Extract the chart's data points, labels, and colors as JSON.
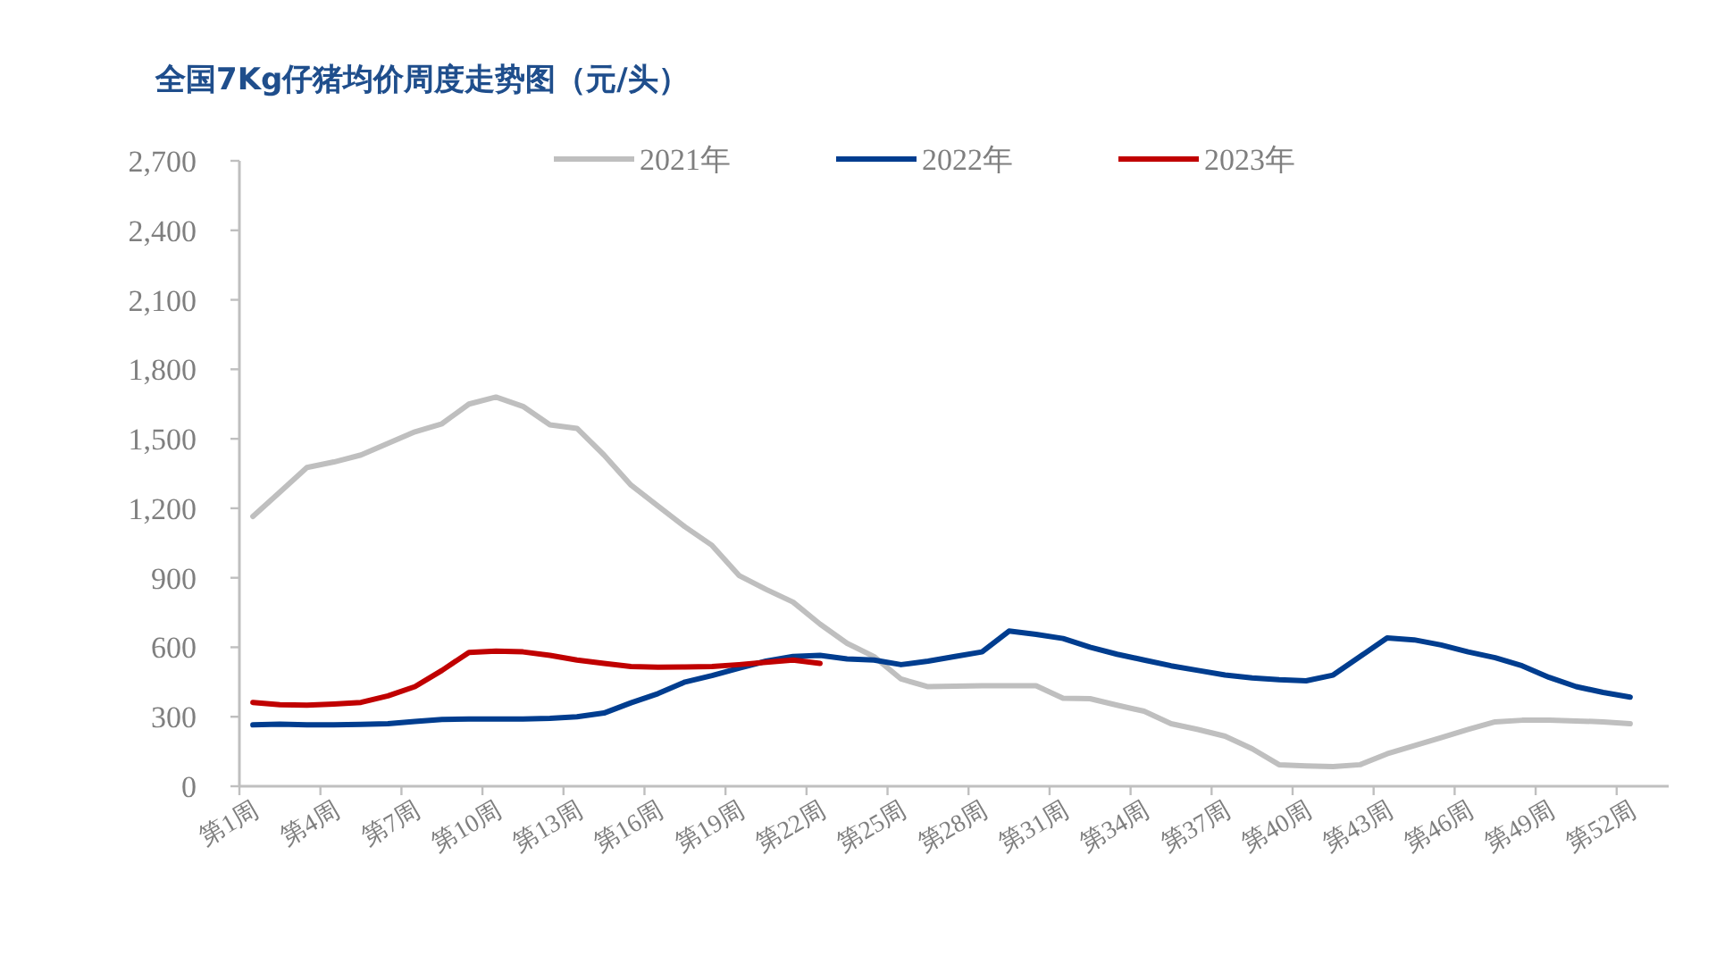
{
  "chart_data": {
    "type": "line",
    "title": "全国7Kg仔猪均价周度走势图（元/头）",
    "categories": [
      "第1周",
      null,
      null,
      "第4周",
      null,
      null,
      "第7周",
      null,
      null,
      "第10周",
      null,
      null,
      "第13周",
      null,
      null,
      "第16周",
      null,
      null,
      "第19周",
      null,
      null,
      "第22周",
      null,
      null,
      "第25周",
      null,
      null,
      "第28周",
      null,
      null,
      "第31周",
      null,
      null,
      "第34周",
      null,
      null,
      "第37周",
      null,
      null,
      "第40周",
      null,
      null,
      "第43周",
      null,
      null,
      "第46周",
      null,
      null,
      "第49周",
      null,
      null,
      "第52周"
    ],
    "series": [
      {
        "name": "2021年",
        "color": "#bfbfbf",
        "values": [
          1165,
          1270,
          1376,
          1400,
          1430,
          1480,
          1530,
          1565,
          1650,
          1680,
          1640,
          1560,
          1545,
          1430,
          1300,
          1210,
          1120,
          1040,
          910,
          850,
          795,
          700,
          617,
          560,
          463,
          430,
          432,
          434,
          434,
          434,
          380,
          378,
          350,
          324,
          270,
          245,
          216,
          162,
          93,
          88,
          85,
          93,
          140,
          175,
          210,
          245,
          278,
          285,
          285,
          282,
          278,
          270
        ]
      },
      {
        "name": "2022年",
        "color": "#003d8f",
        "values": [
          265,
          268,
          265,
          265,
          267,
          270,
          280,
          288,
          290,
          290,
          290,
          293,
          300,
          316,
          360,
          400,
          450,
          478,
          510,
          540,
          560,
          565,
          550,
          545,
          525,
          540,
          560,
          580,
          670,
          656,
          638,
          600,
          570,
          545,
          520,
          500,
          480,
          468,
          460,
          455,
          480,
          560,
          640,
          632,
          610,
          580,
          555,
          520,
          470,
          430,
          405,
          385
        ]
      },
      {
        "name": "2023年",
        "color": "#c00000",
        "values": [
          362,
          352,
          350,
          355,
          362,
          390,
          430,
          500,
          578,
          583,
          580,
          565,
          545,
          530,
          517,
          514,
          515,
          517,
          525,
          535,
          545,
          530,
          null,
          null,
          null,
          null,
          null,
          null,
          null,
          null,
          null,
          null,
          null,
          null,
          null,
          null,
          null,
          null,
          null,
          null,
          null,
          null,
          null,
          null,
          null,
          null,
          null,
          null,
          null,
          null,
          null,
          null
        ]
      }
    ],
    "ylim": [
      0,
      2700
    ],
    "yticks": [
      0,
      300,
      600,
      900,
      {
        "value": 1200,
        "label": "1,200"
      },
      {
        "value": 1500,
        "label": "1,500"
      },
      {
        "value": 1800,
        "label": "1,800"
      },
      {
        "value": 2100,
        "label": "2,100"
      },
      {
        "value": 2400,
        "label": "2,400"
      },
      {
        "value": 2700,
        "label": "2,700"
      }
    ],
    "legend": "top"
  }
}
